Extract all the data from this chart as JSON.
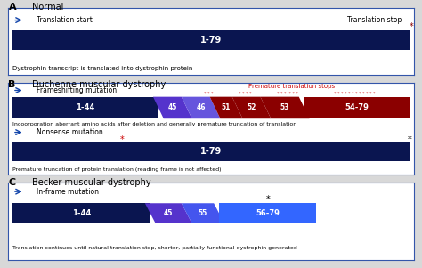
{
  "bg_color": "#d8d8d8",
  "panel_border_color": "#3355aa",
  "dark_blue": "#0a1550",
  "purple_blue": "#5533cc",
  "medium_purple": "#6644cc",
  "bright_blue": "#3366ff",
  "dark_red": "#8b0000",
  "arrow_color": "#1144aa",
  "A_title": "Normal",
  "A_start_label": "Translation start",
  "A_stop_label": "Translation stop",
  "A_bar_label": "1-79",
  "A_caption": "Dystrophin transcript is translated into dystrophin protein",
  "B_title": "Duchenne muscular dystrophy",
  "B_fs_label": "Frameshifting mutation",
  "B_premature_label": "Premature translation stops",
  "B_stars_51": "* * *",
  "B_stars_52": "* * * *",
  "B_stars_53": "* * * * *",
  "B_stars_54": "* * * * * * * * * * * *",
  "B_bar1_label": "1-44",
  "B_bar45_label": "45",
  "B_bar46_label": "46",
  "B_bar51_label": "51",
  "B_bar52_label": "52",
  "B_bar53_label": "53",
  "B_bar54_label": "54-79",
  "B_fs_caption": "Incoorporation aberrant amino acids after deletion and generally premature truncation of translation",
  "B_ns_label": "Nonsense mutation",
  "B_ns_bar_label": "1-79",
  "B_ns_caption": "Premature truncation of protein translation (reading frame is not affected)",
  "C_title": "Becker muscular dystrophy",
  "C_mut_label": "In-frame mutation",
  "C_bar1_label": "1-44",
  "C_bar45_label": "45",
  "C_bar55_label": "55",
  "C_bar56_label": "56-79",
  "C_caption": "Translation continues until natural translation stop, shorter, partially functional dystrophin generated"
}
